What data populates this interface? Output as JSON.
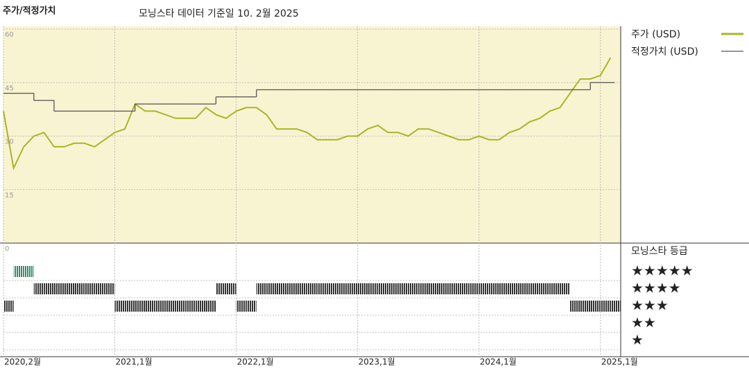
{
  "chart_data": {
    "type": "line",
    "title": "주가/적정가치",
    "subtitle": "모닝스타 데이터 기준일 10. 2월 2025",
    "x": [
      "2020-02",
      "2020-03",
      "2020-04",
      "2020-05",
      "2020-06",
      "2020-07",
      "2020-08",
      "2020-09",
      "2020-10",
      "2020-11",
      "2020-12",
      "2021-01",
      "2021-02",
      "2021-03",
      "2021-04",
      "2021-05",
      "2021-06",
      "2021-07",
      "2021-08",
      "2021-09",
      "2021-10",
      "2021-11",
      "2021-12",
      "2022-01",
      "2022-02",
      "2022-03",
      "2022-04",
      "2022-05",
      "2022-06",
      "2022-07",
      "2022-08",
      "2022-09",
      "2022-10",
      "2022-11",
      "2022-12",
      "2023-01",
      "2023-02",
      "2023-03",
      "2023-04",
      "2023-05",
      "2023-06",
      "2023-07",
      "2023-08",
      "2023-09",
      "2023-10",
      "2023-11",
      "2023-12",
      "2024-01",
      "2024-02",
      "2024-03",
      "2024-04",
      "2024-05",
      "2024-06",
      "2024-07",
      "2024-08",
      "2024-09",
      "2024-10",
      "2024-11",
      "2024-12",
      "2025-01",
      "2025-02"
    ],
    "series": [
      {
        "name": "주가 (USD)",
        "color": "#a9b526",
        "values": [
          37,
          21,
          27,
          30,
          31,
          27,
          27,
          28,
          28,
          27,
          29,
          31,
          32,
          39,
          37,
          37,
          36,
          35,
          35,
          35,
          38,
          36,
          35,
          37,
          38,
          38,
          36,
          32,
          32,
          32,
          31,
          29,
          29,
          29,
          30,
          30,
          32,
          33,
          31,
          31,
          30,
          32,
          32,
          31,
          30,
          29,
          29,
          30,
          29,
          29,
          31,
          32,
          34,
          35,
          37,
          38,
          42,
          46,
          46,
          47,
          52
        ]
      },
      {
        "name": "적정가치 (USD)",
        "color": "#555555",
        "step": true,
        "values": [
          42,
          42,
          42,
          40,
          40,
          37,
          37,
          37,
          37,
          37,
          37,
          37,
          37,
          39,
          39,
          39,
          39,
          39,
          39,
          39,
          39,
          41,
          41,
          41,
          41,
          43,
          43,
          43,
          43,
          43,
          43,
          43,
          43,
          43,
          43,
          43,
          43,
          43,
          43,
          43,
          43,
          43,
          43,
          43,
          43,
          43,
          43,
          43,
          43,
          43,
          43,
          43,
          43,
          43,
          43,
          43,
          43,
          43,
          45,
          45,
          45
        ]
      }
    ],
    "xlim": [
      "2020-02",
      "2025-03"
    ],
    "xticks": [
      {
        "value": "2020-02",
        "label": "2020,2월"
      },
      {
        "value": "2021-01",
        "label": "2021,1월"
      },
      {
        "value": "2022-01",
        "label": "2022,1월"
      },
      {
        "value": "2023-01",
        "label": "2023,1월"
      },
      {
        "value": "2024-01",
        "label": "2024,1월"
      },
      {
        "value": "2025-01",
        "label": "2025,1월"
      }
    ],
    "ylim": [
      0,
      60
    ],
    "yticks": [
      0,
      15,
      30,
      45,
      60
    ],
    "grid": true,
    "rating": {
      "title": "모닝스타 등급",
      "colors": {
        "5": "#3a8a6a",
        "other": "#333333"
      },
      "levels": [
        {
          "value": 5,
          "label": "★★★★★"
        },
        {
          "value": 4,
          "label": "★★★★"
        },
        {
          "value": 3,
          "label": "★★★"
        },
        {
          "value": 2,
          "label": "★★"
        },
        {
          "value": 1,
          "label": "★"
        }
      ],
      "values": [
        3,
        5,
        5,
        4,
        4,
        4,
        4,
        4,
        4,
        4,
        4,
        3,
        3,
        3,
        3,
        3,
        3,
        3,
        3,
        3,
        3,
        4,
        4,
        3,
        3,
        4,
        4,
        4,
        4,
        4,
        4,
        4,
        4,
        4,
        4,
        4,
        4,
        4,
        4,
        4,
        4,
        4,
        4,
        4,
        4,
        4,
        4,
        4,
        4,
        4,
        4,
        4,
        4,
        4,
        4,
        4,
        3,
        3,
        3,
        3,
        3
      ]
    }
  }
}
